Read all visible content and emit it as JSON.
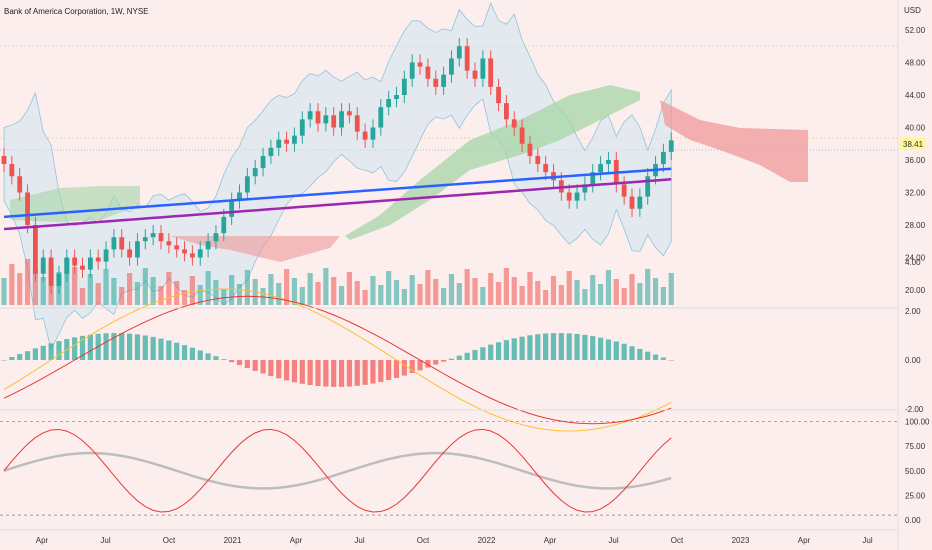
{
  "chart_data": {
    "type": "candlestick",
    "title": "Bank of America Corporation, 1W, NYSE",
    "currency": "USD",
    "x_labels": [
      "Apr",
      "Jul",
      "Oct",
      "2021",
      "Apr",
      "Jul",
      "Oct",
      "2022",
      "Apr",
      "Jul",
      "Oct",
      "2023",
      "Apr",
      "Jul"
    ],
    "last_price": "38.41",
    "colors": {
      "up": "#26a69a",
      "down": "#ef5350",
      "sma_blue": "#2962ff",
      "sma_purple": "#9c27b0",
      "bb_fill": "#cde6f0",
      "cloud_green": "#a5d6a7",
      "cloud_red": "#ef9a9a",
      "price_label": "#fff59d"
    },
    "price_panel": {
      "y_ticks": [
        "52.00",
        "48.00",
        "44.00",
        "40.00",
        "36.00",
        "32.00",
        "28.00",
        "24.00",
        "20.00"
      ],
      "ylim": [
        18.6,
        54.5
      ],
      "close_approx": [
        35.5,
        34.0,
        32.0,
        28.0,
        22.0,
        24.0,
        20.5,
        22.0,
        24.0,
        23.0,
        22.5,
        24.0,
        23.5,
        25.0,
        26.5,
        25.0,
        24.0,
        26.0,
        26.5,
        27.0,
        26.0,
        25.5,
        25.0,
        24.5,
        24.0,
        25.0,
        26.0,
        27.0,
        29.0,
        31.0,
        32.0,
        34.0,
        35.0,
        36.5,
        37.5,
        38.5,
        38.0,
        39.0,
        41.0,
        42.0,
        40.5,
        41.5,
        40.0,
        42.0,
        41.5,
        39.5,
        38.5,
        40.0,
        42.5,
        43.5,
        44.0,
        46.0,
        48.0,
        47.5,
        46.0,
        45.0,
        46.5,
        48.5,
        50.0,
        47.0,
        46.0,
        48.5,
        45.0,
        43.0,
        41.0,
        40.0,
        38.0,
        36.5,
        35.5,
        34.5,
        33.5,
        32.0,
        31.0,
        32.0,
        33.0,
        34.5,
        35.5,
        36.0,
        33.0,
        31.5,
        30.0,
        31.5,
        34.0,
        35.5,
        37.0,
        38.41
      ]
    },
    "macd_panel": {
      "y_ticks": [
        "4.00",
        "2.00",
        "0.00",
        "-2.00"
      ]
    },
    "rsi_panel": {
      "y_ticks": [
        "100.00",
        "75.00",
        "50.00",
        "25.00",
        "0.00"
      ]
    }
  }
}
